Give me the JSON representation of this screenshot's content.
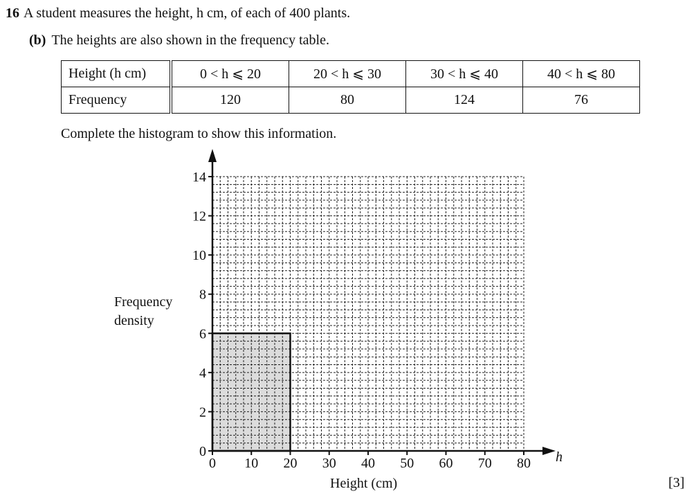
{
  "question": {
    "number": "16",
    "stem": "A student measures the height, h cm, of each of 400 plants.",
    "part_label": "(b)",
    "part_text": "The heights are also shown in the frequency table.",
    "instruction": "Complete the histogram to show this information.",
    "marks": "[3]"
  },
  "table": {
    "header_label": "Height (h cm)",
    "row_label": "Frequency",
    "columns": [
      "0 < h ⩽ 20",
      "20 < h ⩽ 30",
      "30 < h ⩽ 40",
      "40 < h ⩽ 80"
    ],
    "frequencies": [
      "120",
      "80",
      "124",
      "76"
    ]
  },
  "chart_data": {
    "type": "bar",
    "title": "",
    "xlabel": "Height (cm)",
    "ylabel": "Frequency density",
    "x_axis_symbol": "h",
    "xlim": [
      0,
      80
    ],
    "ylim": [
      0,
      14
    ],
    "x_ticks": [
      "0",
      "10",
      "20",
      "30",
      "40",
      "50",
      "60",
      "70",
      "80"
    ],
    "y_ticks": [
      "0",
      "2",
      "4",
      "6",
      "8",
      "10",
      "12",
      "14"
    ],
    "grid": true,
    "bars": [
      {
        "x_start": 0,
        "x_end": 20,
        "height": 6,
        "fill": "#dcdcdc"
      }
    ]
  }
}
